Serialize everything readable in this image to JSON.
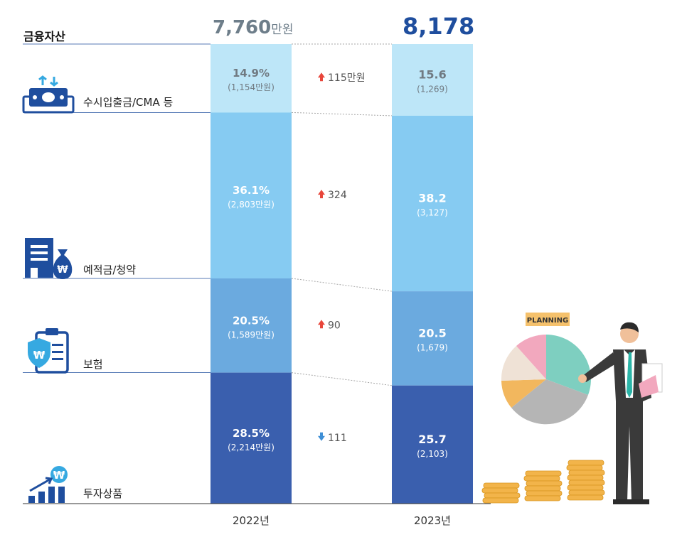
{
  "header": {
    "category_title": "금융자산"
  },
  "totals": {
    "y2022_value": "7,760",
    "y2022_unit": "만원",
    "y2023_value": "8,178"
  },
  "categories": [
    {
      "label": "수시입출금/CMA 등",
      "icon": "cash-transfer-icon"
    },
    {
      "label": "예적금/청약",
      "icon": "bank-moneybag-icon"
    },
    {
      "label": "보험",
      "icon": "insurance-clipboard-icon"
    },
    {
      "label": "투자상품",
      "icon": "growth-chart-icon"
    }
  ],
  "illustration": {
    "sign_text": "PLANNING",
    "description_icon": "businessman-pie-chart-icon"
  },
  "colors": {
    "seg1": "#BDE6F8",
    "seg2": "#86CBF2",
    "seg3": "#6BAADF",
    "seg4": "#3A5FAE",
    "up": "#E8463B",
    "down": "#3E8FD6",
    "accent": "#1F4E9E"
  },
  "chart_data": {
    "type": "bar",
    "subtype": "stacked-100",
    "title": "",
    "xlabel": "",
    "ylabel": "",
    "categories": [
      "2022년",
      "2023년"
    ],
    "series": [
      {
        "name": "수시입출금/CMA 등",
        "values": [
          14.9,
          15.6
        ],
        "labels": [
          "14.9%",
          "15.6"
        ],
        "amounts": [
          "(1,154만원)",
          "(1,269)"
        ],
        "change": {
          "dir": "up",
          "text": "115만원"
        }
      },
      {
        "name": "예적금/청약",
        "values": [
          36.1,
          38.2
        ],
        "labels": [
          "36.1%",
          "38.2"
        ],
        "amounts": [
          "(2,803만원)",
          "(3,127)"
        ],
        "change": {
          "dir": "up",
          "text": "324"
        }
      },
      {
        "name": "보험",
        "values": [
          20.5,
          20.5
        ],
        "labels": [
          "20.5%",
          "20.5"
        ],
        "amounts": [
          "(1,589만원)",
          "(1,679)"
        ],
        "change": {
          "dir": "up",
          "text": "90"
        }
      },
      {
        "name": "투자상품",
        "values": [
          28.5,
          25.7
        ],
        "labels": [
          "28.5%",
          "25.7"
        ],
        "amounts": [
          "(2,214만원)",
          "(2,103)"
        ],
        "change": {
          "dir": "down",
          "text": "111"
        }
      }
    ],
    "ylim": [
      0,
      100
    ]
  }
}
